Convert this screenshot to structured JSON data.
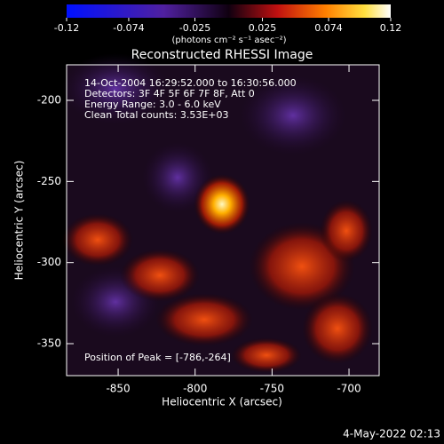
{
  "chart_data": {
    "type": "image",
    "title": "Reconstructed RHESSI Image",
    "xlabel": "Heliocentric X (arcsec)",
    "ylabel": "Heliocentric Y (arcsec)",
    "colorbar_label": "(photons cm⁻² s⁻¹ asec⁻²)",
    "clim": [
      -0.12,
      0.12
    ],
    "cticks": [
      -0.12,
      -0.074,
      -0.025,
      0.025,
      0.074,
      0.12
    ],
    "xlim": [
      -883.5,
      -680.4
    ],
    "xticks": [
      -850,
      -800,
      -750,
      -700
    ],
    "ylim": [
      -369.7,
      -178.1
    ],
    "yticks": [
      -200,
      -250,
      -300,
      -350
    ],
    "info": [
      "14-Oct-2004 16:29:52.000 to 16:30:56.000",
      "Detectors: 3F 4F 5F 6F 7F 8F, Att 0",
      "Energy Range: 3.0 - 6.0 keV",
      "Clean    Total counts: 3.53E+03"
    ],
    "peak_label": "Position of Peak = [-786,-264]",
    "timestamp": "4-May-2022 02:13"
  }
}
